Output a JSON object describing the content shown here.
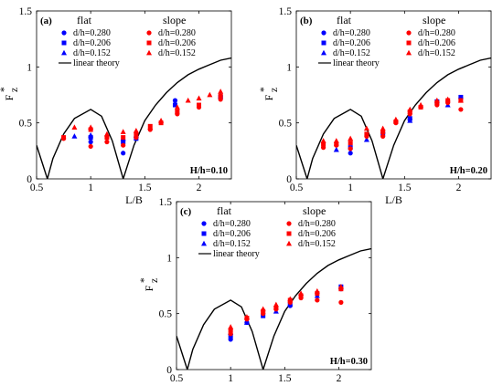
{
  "chart_data": [
    {
      "type": "scatter",
      "panel_label": "(a)",
      "annotation": "H/h=0.10",
      "xlabel": "L/B",
      "ylabel_base": "F",
      "ylabel_sup": "*",
      "ylabel_sub": "z",
      "xlim": [
        0.5,
        2.3
      ],
      "ylim": [
        0,
        1.5
      ],
      "xticks": [
        "0.5",
        "1",
        "1.5",
        "2"
      ],
      "yticks": [
        "0",
        "0.5",
        "1",
        "1.5"
      ],
      "legend_headers": [
        "flat",
        "slope"
      ],
      "series": [
        {
          "name": "d/h=0.280",
          "group": "flat",
          "marker": "circle",
          "color": "#0000ff",
          "points": [
            [
              1.0,
              0.33
            ],
            [
              1.3,
              0.23
            ],
            [
              1.78,
              0.7
            ],
            [
              2.2,
              0.74
            ]
          ]
        },
        {
          "name": "d/h=0.206",
          "group": "flat",
          "marker": "square",
          "color": "#0000ff",
          "points": [
            [
              1.0,
              0.37
            ],
            [
              1.3,
              0.33
            ],
            [
              1.42,
              0.36
            ],
            [
              1.78,
              0.66
            ],
            [
              2.2,
              0.73
            ]
          ]
        },
        {
          "name": "d/h=0.152",
          "group": "flat",
          "marker": "triangle",
          "color": "#0000ff",
          "points": [
            [
              0.85,
              0.38
            ],
            [
              1.0,
              0.39
            ],
            [
              1.3,
              0.36
            ],
            [
              1.42,
              0.39
            ],
            [
              2.2,
              0.74
            ]
          ]
        },
        {
          "name": "d/h=0.280",
          "group": "slope",
          "marker": "circle",
          "color": "#ff0000",
          "points": [
            [
              0.75,
              0.36
            ],
            [
              1.0,
              0.29
            ],
            [
              1.15,
              0.33
            ],
            [
              1.3,
              0.3
            ],
            [
              1.42,
              0.37
            ],
            [
              1.55,
              0.44
            ],
            [
              1.8,
              0.58
            ],
            [
              2.0,
              0.64
            ],
            [
              2.2,
              0.71
            ]
          ]
        },
        {
          "name": "d/h=0.206",
          "group": "slope",
          "marker": "square",
          "color": "#ff0000",
          "points": [
            [
              0.75,
              0.37
            ],
            [
              1.0,
              0.44
            ],
            [
              1.15,
              0.37
            ],
            [
              1.3,
              0.37
            ],
            [
              1.42,
              0.4
            ],
            [
              1.55,
              0.47
            ],
            [
              1.65,
              0.5
            ],
            [
              1.8,
              0.6
            ],
            [
              2.0,
              0.66
            ],
            [
              2.2,
              0.74
            ]
          ]
        },
        {
          "name": "d/h=0.152",
          "group": "slope",
          "marker": "triangle",
          "color": "#ff0000",
          "points": [
            [
              0.85,
              0.46
            ],
            [
              1.0,
              0.46
            ],
            [
              1.15,
              0.4
            ],
            [
              1.3,
              0.42
            ],
            [
              1.42,
              0.43
            ],
            [
              1.55,
              0.46
            ],
            [
              1.65,
              0.52
            ],
            [
              1.8,
              0.64
            ],
            [
              1.9,
              0.7
            ],
            [
              2.0,
              0.72
            ],
            [
              2.1,
              0.75
            ],
            [
              2.2,
              0.78
            ]
          ]
        },
        {
          "name": "linear theory",
          "marker": "line",
          "color": "#000000",
          "points": [
            [
              0.5,
              0.3
            ],
            [
              0.55,
              0.15
            ],
            [
              0.6,
              0.0
            ],
            [
              0.65,
              0.18
            ],
            [
              0.75,
              0.4
            ],
            [
              0.85,
              0.54
            ],
            [
              1.0,
              0.62
            ],
            [
              1.1,
              0.56
            ],
            [
              1.2,
              0.34
            ],
            [
              1.3,
              0.0
            ],
            [
              1.4,
              0.3
            ],
            [
              1.5,
              0.52
            ],
            [
              1.6,
              0.66
            ],
            [
              1.7,
              0.77
            ],
            [
              1.8,
              0.86
            ],
            [
              1.9,
              0.93
            ],
            [
              2.0,
              0.98
            ],
            [
              2.1,
              1.02
            ],
            [
              2.2,
              1.06
            ],
            [
              2.3,
              1.08
            ]
          ]
        }
      ]
    },
    {
      "type": "scatter",
      "panel_label": "(b)",
      "annotation": "H/h=0.20",
      "xlabel": "L/B",
      "ylabel_base": "F",
      "ylabel_sup": "*",
      "ylabel_sub": "z",
      "xlim": [
        0.5,
        2.3
      ],
      "ylim": [
        0,
        1.5
      ],
      "xticks": [
        "0.5",
        "1",
        "1.5",
        "2"
      ],
      "yticks": [
        "0",
        "0.5",
        "1",
        "1.5"
      ],
      "legend_headers": [
        "flat",
        "slope"
      ],
      "series": [
        {
          "name": "d/h=0.280",
          "group": "flat",
          "marker": "circle",
          "color": "#0000ff",
          "points": [
            [
              1.0,
              0.23
            ],
            [
              1.3,
              0.41
            ],
            [
              1.55,
              0.53
            ],
            [
              2.02,
              0.72
            ]
          ]
        },
        {
          "name": "d/h=0.206",
          "group": "flat",
          "marker": "square",
          "color": "#0000ff",
          "points": [
            [
              1.0,
              0.28
            ],
            [
              1.3,
              0.4
            ],
            [
              1.55,
              0.54
            ],
            [
              1.8,
              0.69
            ],
            [
              2.02,
              0.73
            ]
          ]
        },
        {
          "name": "d/h=0.152",
          "group": "flat",
          "marker": "triangle",
          "color": "#0000ff",
          "points": [
            [
              0.87,
              0.26
            ],
            [
              1.15,
              0.35
            ],
            [
              1.55,
              0.52
            ],
            [
              1.9,
              0.66
            ]
          ]
        },
        {
          "name": "d/h=0.280",
          "group": "slope",
          "marker": "circle",
          "color": "#ff0000",
          "points": [
            [
              0.75,
              0.28
            ],
            [
              0.87,
              0.3
            ],
            [
              1.0,
              0.27
            ],
            [
              1.15,
              0.38
            ],
            [
              1.3,
              0.38
            ],
            [
              1.42,
              0.5
            ],
            [
              1.55,
              0.58
            ],
            [
              1.65,
              0.64
            ],
            [
              1.8,
              0.66
            ],
            [
              1.9,
              0.68
            ],
            [
              2.02,
              0.62
            ]
          ]
        },
        {
          "name": "d/h=0.206",
          "group": "slope",
          "marker": "square",
          "color": "#ff0000",
          "points": [
            [
              0.75,
              0.31
            ],
            [
              0.87,
              0.31
            ],
            [
              1.0,
              0.32
            ],
            [
              1.15,
              0.4
            ],
            [
              1.3,
              0.42
            ],
            [
              1.42,
              0.51
            ],
            [
              1.55,
              0.6
            ],
            [
              1.65,
              0.64
            ],
            [
              1.8,
              0.68
            ],
            [
              1.9,
              0.7
            ],
            [
              2.02,
              0.7
            ]
          ]
        },
        {
          "name": "d/h=0.152",
          "group": "slope",
          "marker": "triangle",
          "color": "#ff0000",
          "points": [
            [
              0.75,
              0.34
            ],
            [
              0.87,
              0.34
            ],
            [
              1.0,
              0.36
            ],
            [
              1.15,
              0.45
            ],
            [
              1.3,
              0.45
            ],
            [
              1.42,
              0.53
            ],
            [
              1.55,
              0.62
            ],
            [
              1.65,
              0.66
            ],
            [
              1.8,
              0.7
            ],
            [
              1.9,
              0.71
            ],
            [
              2.02,
              0.7
            ]
          ]
        },
        {
          "name": "linear theory",
          "marker": "line",
          "color": "#000000",
          "points": [
            [
              0.5,
              0.3
            ],
            [
              0.55,
              0.15
            ],
            [
              0.6,
              0.0
            ],
            [
              0.65,
              0.18
            ],
            [
              0.75,
              0.4
            ],
            [
              0.85,
              0.54
            ],
            [
              1.0,
              0.62
            ],
            [
              1.1,
              0.56
            ],
            [
              1.2,
              0.34
            ],
            [
              1.3,
              0.0
            ],
            [
              1.4,
              0.3
            ],
            [
              1.5,
              0.52
            ],
            [
              1.6,
              0.66
            ],
            [
              1.7,
              0.77
            ],
            [
              1.8,
              0.86
            ],
            [
              1.9,
              0.93
            ],
            [
              2.0,
              0.98
            ],
            [
              2.1,
              1.02
            ],
            [
              2.2,
              1.06
            ],
            [
              2.3,
              1.08
            ]
          ]
        }
      ]
    },
    {
      "type": "scatter",
      "panel_label": "(c)",
      "annotation": "H/h=0.30",
      "xlabel": "L/B",
      "ylabel_base": "F",
      "ylabel_sup": "*",
      "ylabel_sub": "z",
      "xlim": [
        0.5,
        2.3
      ],
      "ylim": [
        0,
        1.5
      ],
      "xticks": [
        "0.5",
        "1",
        "1.5",
        "2"
      ],
      "yticks": [
        "0",
        "0.5",
        "1",
        "1.5"
      ],
      "legend_headers": [
        "flat",
        "slope"
      ],
      "series": [
        {
          "name": "d/h=0.280",
          "group": "flat",
          "marker": "circle",
          "color": "#0000ff",
          "points": [
            [
              1.0,
              0.27
            ],
            [
              1.15,
              0.42
            ],
            [
              1.55,
              0.57
            ],
            [
              2.02,
              0.72
            ]
          ]
        },
        {
          "name": "d/h=0.206",
          "group": "flat",
          "marker": "square",
          "color": "#0000ff",
          "points": [
            [
              1.0,
              0.3
            ],
            [
              1.3,
              0.48
            ],
            [
              1.55,
              0.58
            ],
            [
              2.02,
              0.74
            ]
          ]
        },
        {
          "name": "d/h=0.152",
          "group": "flat",
          "marker": "triangle",
          "color": "#0000ff",
          "points": [
            [
              1.0,
              0.33
            ],
            [
              1.15,
              0.42
            ],
            [
              1.42,
              0.52
            ],
            [
              1.8,
              0.66
            ]
          ]
        },
        {
          "name": "d/h=0.280",
          "group": "slope",
          "marker": "circle",
          "color": "#ff0000",
          "points": [
            [
              1.0,
              0.32
            ],
            [
              1.15,
              0.45
            ],
            [
              1.3,
              0.5
            ],
            [
              1.42,
              0.54
            ],
            [
              1.55,
              0.6
            ],
            [
              1.65,
              0.64
            ],
            [
              1.8,
              0.62
            ],
            [
              2.02,
              0.6
            ]
          ]
        },
        {
          "name": "d/h=0.206",
          "group": "slope",
          "marker": "square",
          "color": "#ff0000",
          "points": [
            [
              1.0,
              0.35
            ],
            [
              1.15,
              0.46
            ],
            [
              1.3,
              0.52
            ],
            [
              1.42,
              0.55
            ],
            [
              1.55,
              0.62
            ],
            [
              1.65,
              0.66
            ],
            [
              1.8,
              0.68
            ],
            [
              2.02,
              0.72
            ]
          ]
        },
        {
          "name": "d/h=0.152",
          "group": "slope",
          "marker": "triangle",
          "color": "#ff0000",
          "points": [
            [
              1.0,
              0.38
            ],
            [
              1.15,
              0.47
            ],
            [
              1.3,
              0.54
            ],
            [
              1.42,
              0.58
            ],
            [
              1.55,
              0.63
            ],
            [
              1.65,
              0.68
            ],
            [
              1.8,
              0.7
            ],
            [
              2.02,
              0.74
            ]
          ]
        },
        {
          "name": "linear theory",
          "marker": "line",
          "color": "#000000",
          "points": [
            [
              0.5,
              0.3
            ],
            [
              0.55,
              0.15
            ],
            [
              0.6,
              0.0
            ],
            [
              0.65,
              0.18
            ],
            [
              0.75,
              0.4
            ],
            [
              0.85,
              0.54
            ],
            [
              1.0,
              0.62
            ],
            [
              1.1,
              0.56
            ],
            [
              1.2,
              0.34
            ],
            [
              1.3,
              0.0
            ],
            [
              1.4,
              0.3
            ],
            [
              1.5,
              0.52
            ],
            [
              1.6,
              0.66
            ],
            [
              1.7,
              0.77
            ],
            [
              1.8,
              0.86
            ],
            [
              1.9,
              0.93
            ],
            [
              2.0,
              0.98
            ],
            [
              2.1,
              1.02
            ],
            [
              2.2,
              1.06
            ],
            [
              2.3,
              1.08
            ]
          ]
        }
      ]
    }
  ]
}
